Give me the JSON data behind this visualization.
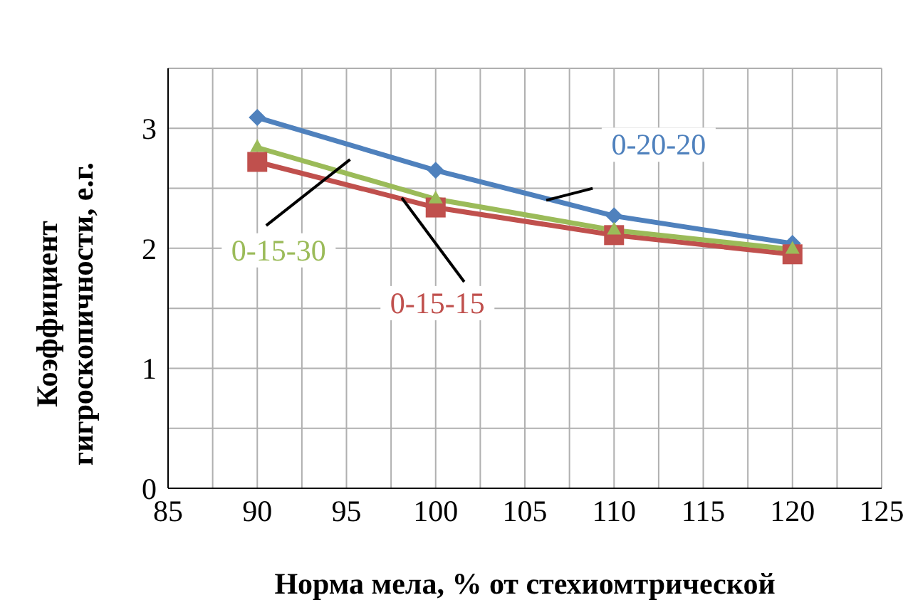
{
  "chart_data": {
    "type": "line",
    "xlabel": "Норма мела, % от стехиомтрической",
    "ylabel": "Коэффициент гигроскопичности, е.г.",
    "x": [
      90,
      100,
      110,
      120
    ],
    "series": [
      {
        "name": "0-20-20",
        "color": "#4f81bd",
        "values": [
          3.09,
          2.65,
          2.27,
          2.04
        ],
        "marker": "diamond"
      },
      {
        "name": "0-15-15",
        "color": "#c0504d",
        "values": [
          2.72,
          2.34,
          2.11,
          1.95
        ],
        "marker": "square"
      },
      {
        "name": "0-15-30",
        "color": "#9bbb59",
        "values": [
          2.84,
          2.41,
          2.15,
          1.99
        ],
        "marker": "triangle"
      }
    ],
    "xlim": [
      85,
      125
    ],
    "xticks": [
      85,
      {
        "value": 87.5,
        "label": null
      },
      90,
      {
        "value": 92.5,
        "label": null
      },
      95,
      {
        "value": 97.5,
        "label": null
      },
      100,
      {
        "value": 102.5,
        "label": null
      },
      105,
      {
        "value": 107.5,
        "label": null
      },
      110,
      {
        "value": 112.5,
        "label": null
      },
      115,
      {
        "value": 117.5,
        "label": null
      },
      120,
      {
        "value": 122.5,
        "label": null
      },
      125
    ],
    "ylim": [
      0,
      3.5
    ],
    "yticks": [
      0,
      {
        "value": 0.5,
        "label": null
      },
      1,
      {
        "value": 1.5,
        "label": null
      },
      2,
      {
        "value": 2.5,
        "label": null
      },
      3,
      {
        "value": 3.5,
        "label": null
      }
    ],
    "grid": true,
    "legend": false,
    "line_style": "solid"
  }
}
